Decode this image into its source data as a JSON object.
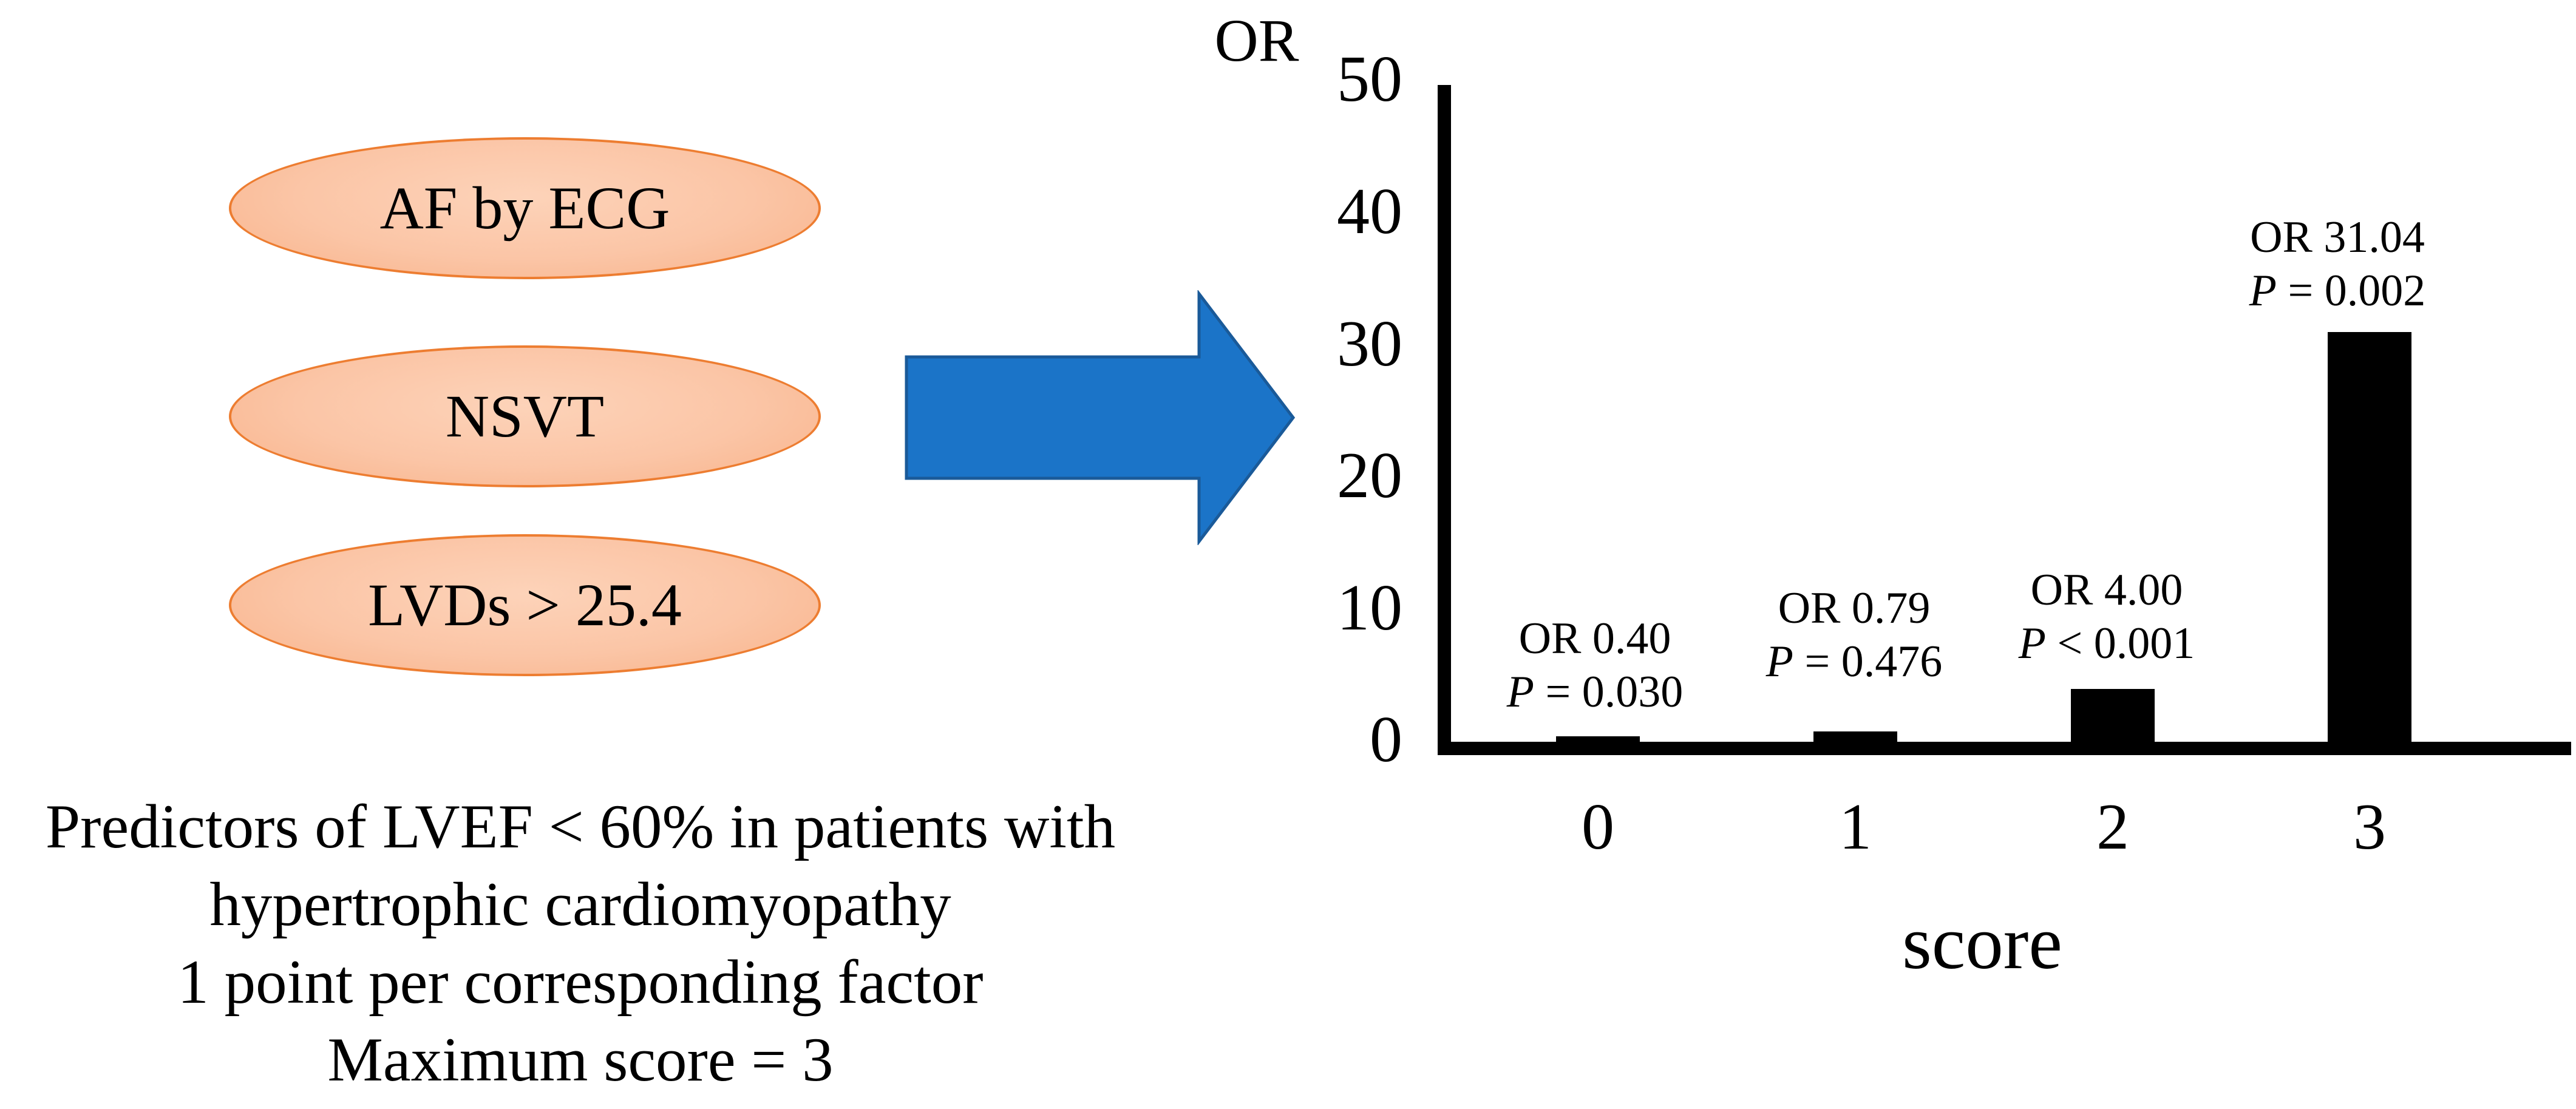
{
  "figure": {
    "predictors": [
      {
        "label": "AF by ECG"
      },
      {
        "label": "NSVT"
      },
      {
        "label": "LVDs > 25.4"
      }
    ],
    "caption_lines": [
      "Predictors of LVEF < 60% in patients with",
      "hypertrophic cardiomyopathy",
      "1 point per corresponding factor",
      "Maximum score = 3"
    ],
    "colors": {
      "ellipse_fill_light": "#FDD3B9",
      "ellipse_fill_dark": "#F7B289",
      "ellipse_border": "#ED7D31",
      "arrow_fill": "#1B74C8",
      "arrow_border": "#1A5A99",
      "bar_color": "#000000",
      "text_color": "#000000"
    }
  },
  "chart_data": {
    "type": "bar",
    "title": "OR",
    "ylabel": "OR",
    "xlabel": "score",
    "categories": [
      "0",
      "1",
      "2",
      "3"
    ],
    "values": [
      0.4,
      0.79,
      4.0,
      31.04
    ],
    "ylim": [
      0,
      50
    ],
    "ytick_step": 10,
    "yticks": [
      "50",
      "40",
      "30",
      "20",
      "10",
      "0"
    ],
    "grid": "off",
    "legend": "none",
    "annotations": [
      {
        "or_line": "OR 0.40",
        "p_sym": "P",
        "p_rest": "= 0.030"
      },
      {
        "or_line": "OR 0.79",
        "p_sym": "P",
        "p_rest": "= 0.476"
      },
      {
        "or_line": "OR 4.00",
        "p_sym": "P",
        "p_rest": "< 0.001"
      },
      {
        "or_line": "OR 31.04",
        "p_sym": "P",
        "p_rest": "= 0.002"
      }
    ]
  }
}
